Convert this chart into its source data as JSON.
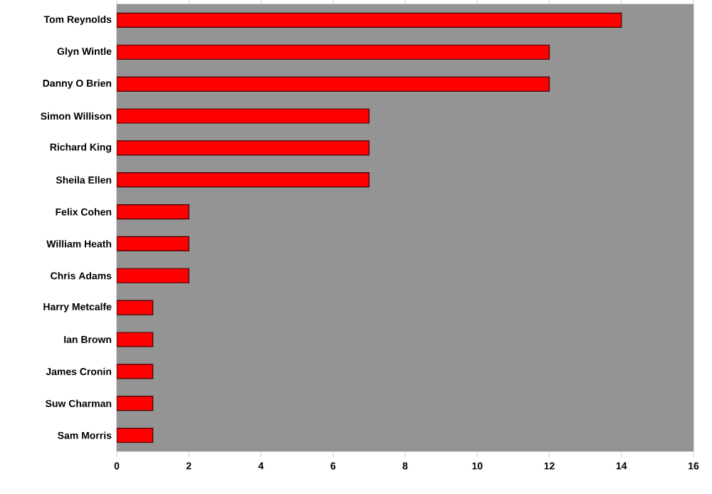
{
  "chart_data": {
    "type": "bar",
    "orientation": "horizontal",
    "categories": [
      "Tom Reynolds",
      "Glyn Wintle",
      "Danny O Brien",
      "Simon Willison",
      "Richard King",
      "Sheila Ellen",
      "Felix Cohen",
      "William Heath",
      "Chris Adams",
      "Harry Metcalfe",
      "Ian Brown",
      "James Cronin",
      "Suw Charman",
      "Sam Morris"
    ],
    "values": [
      14,
      12,
      12,
      7,
      7,
      7,
      2,
      2,
      2,
      1,
      1,
      1,
      1,
      1
    ],
    "color": "#ff0000",
    "xlim": [
      0,
      16
    ],
    "xticks": [
      0,
      2,
      4,
      6,
      8,
      10,
      12,
      14,
      16
    ]
  }
}
